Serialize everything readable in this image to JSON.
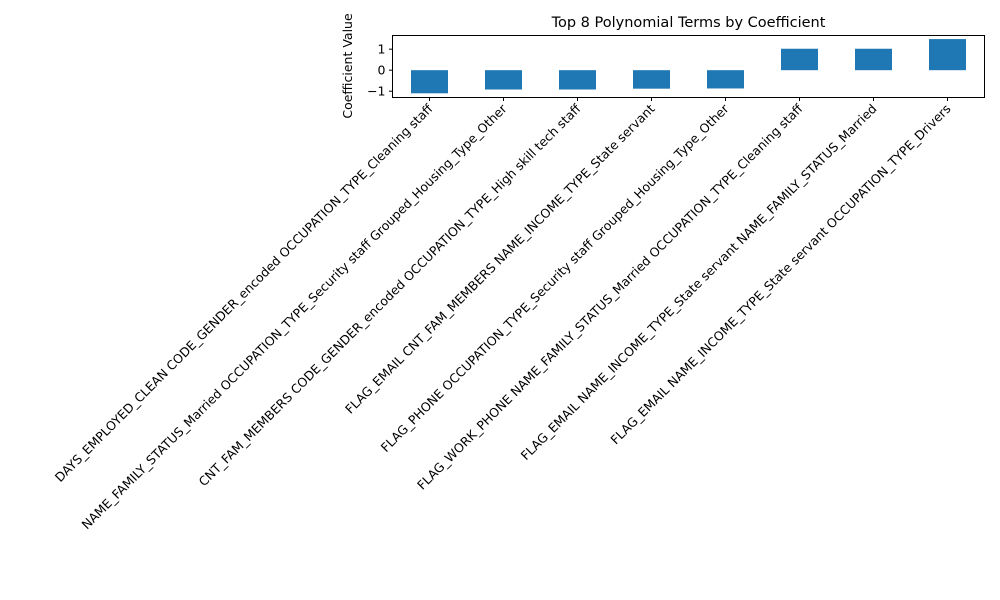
{
  "chart_data": {
    "type": "bar",
    "title": "Top 8 Polynomial Terms by Coefficient",
    "xlabel": "",
    "ylabel": "Coefficient Value",
    "categories": [
      "DAYS_EMPLOYED_CLEAN CODE_GENDER_encoded OCCUPATION_TYPE_Cleaning staff",
      "NAME_FAMILY_STATUS_Married OCCUPATION_TYPE_Security staff Grouped_Housing_Type_Other",
      "CNT_FAM_MEMBERS CODE_GENDER_encoded OCCUPATION_TYPE_High skill tech staff",
      "FLAG_EMAIL CNT_FAM_MEMBERS NAME_INCOME_TYPE_State servant",
      "FLAG_PHONE OCCUPATION_TYPE_Security staff Grouped_Housing_Type_Other",
      "FLAG_WORK_PHONE NAME_FAMILY_STATUS_Married OCCUPATION_TYPE_Cleaning staff",
      "FLAG_EMAIL NAME_INCOME_TYPE_State servant NAME_FAMILY_STATUS_Married",
      "FLAG_EMAIL NAME_INCOME_TYPE_State servant OCCUPATION_TYPE_Drivers"
    ],
    "values": [
      -1.1,
      -0.92,
      -0.92,
      -0.88,
      -0.87,
      1.02,
      1.02,
      1.48
    ],
    "ylim": [
      -1.3,
      1.65
    ],
    "yticks": [
      -1,
      0,
      1
    ],
    "grid": false,
    "bar_color": "#1f77b4"
  }
}
